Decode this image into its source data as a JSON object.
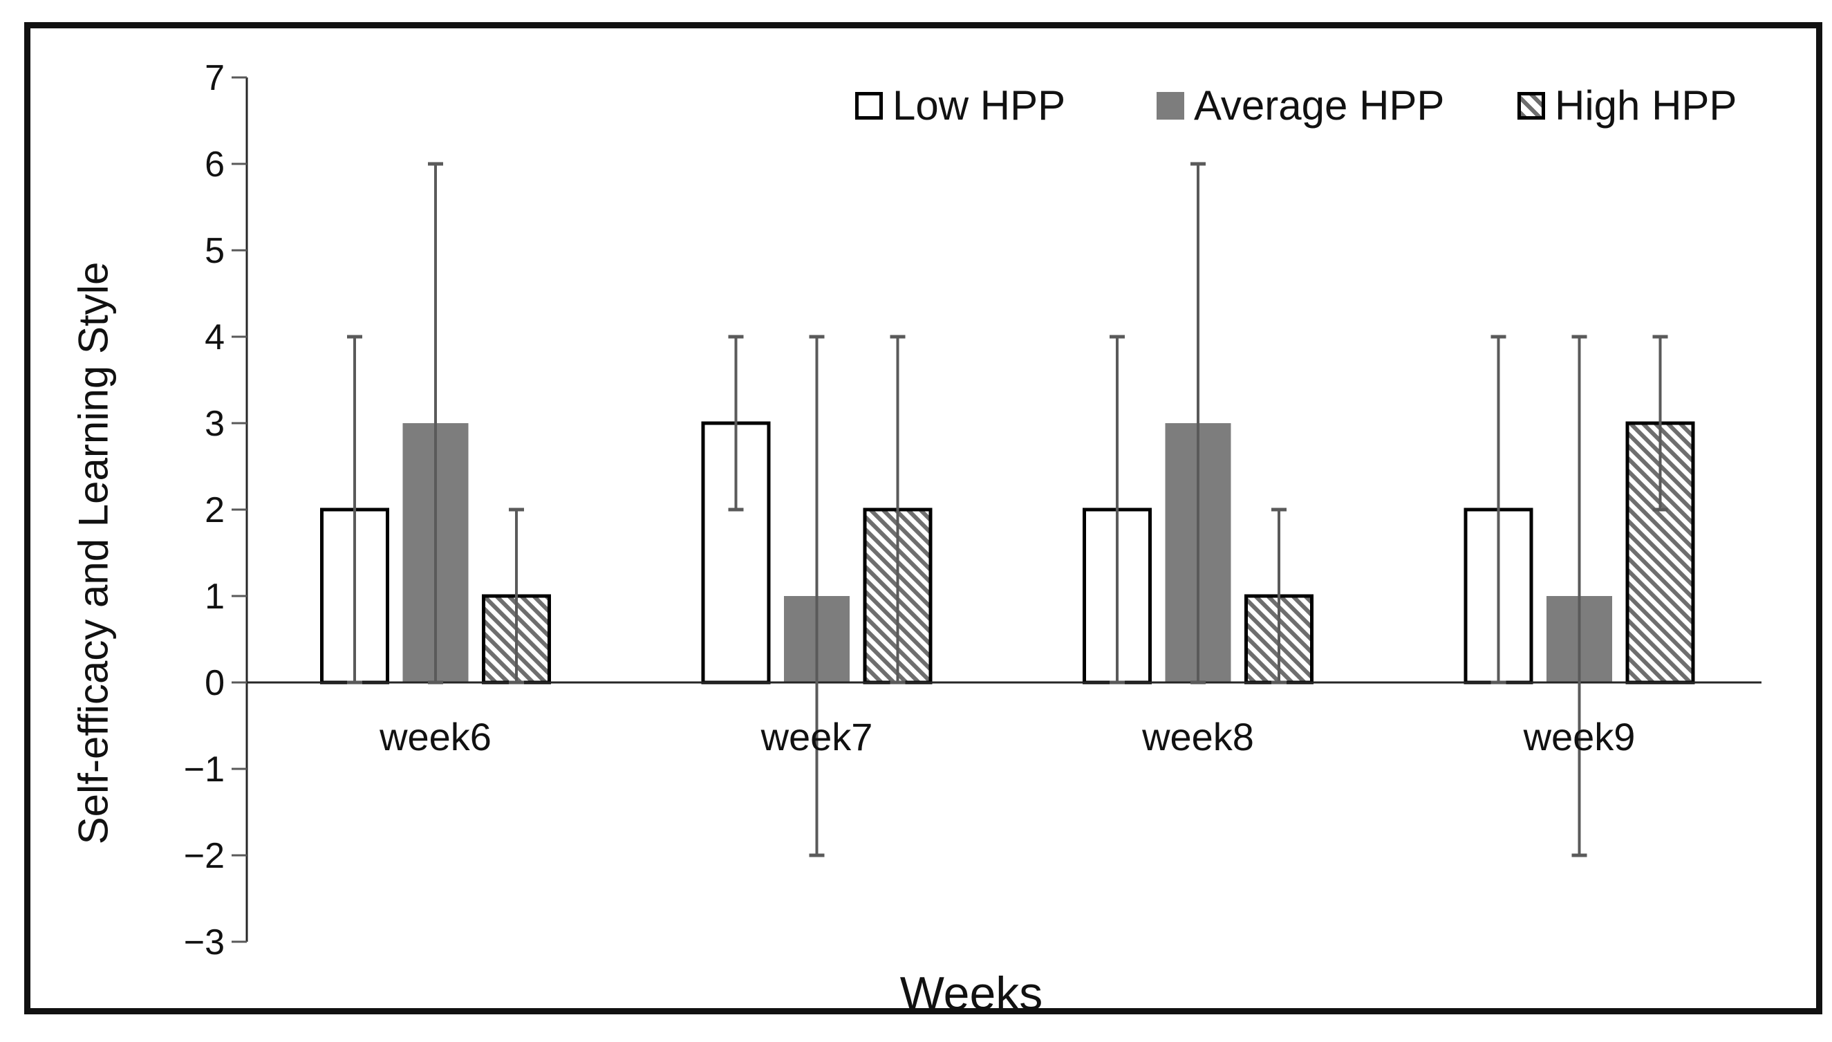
{
  "figure": {
    "background": "#ffffff",
    "border_color": "#111111"
  },
  "chart_data": {
    "type": "bar",
    "title": "",
    "xlabel": "Weeks",
    "ylabel": "Self-efficacy and Learning Style",
    "categories": [
      "week6",
      "week7",
      "week8",
      "week9"
    ],
    "ylim": [
      -3,
      7
    ],
    "y_ticks": [
      7,
      6,
      5,
      4,
      3,
      2,
      1,
      0,
      -1,
      -2,
      -3
    ],
    "grid": false,
    "legend_position": "top-right",
    "series": [
      {
        "name": "Low HPP",
        "style": "outline",
        "fill": "#ffffff",
        "stroke": "#000000",
        "values": [
          2,
          3,
          2,
          2
        ],
        "error_low": [
          0,
          2,
          0,
          0
        ],
        "error_high": [
          4,
          4,
          4,
          4
        ]
      },
      {
        "name": "Average HPP",
        "style": "solid",
        "fill": "#7d7d7d",
        "stroke": "none",
        "values": [
          3,
          1,
          3,
          1
        ],
        "error_low": [
          0,
          -2,
          0,
          -2
        ],
        "error_high": [
          6,
          4,
          6,
          4
        ]
      },
      {
        "name": "High HPP",
        "style": "hatch",
        "fill": "#ffffff",
        "stroke": "#000000",
        "hatch_color": "#6e6e6e",
        "values": [
          1,
          2,
          1,
          3
        ],
        "error_low": [
          0,
          0,
          0,
          2
        ],
        "error_high": [
          2,
          4,
          2,
          4
        ]
      }
    ],
    "error_bar_color": "#5a5a5a",
    "axis_color": "#262626",
    "tick_color": "#595959",
    "text_color": "#111111"
  }
}
